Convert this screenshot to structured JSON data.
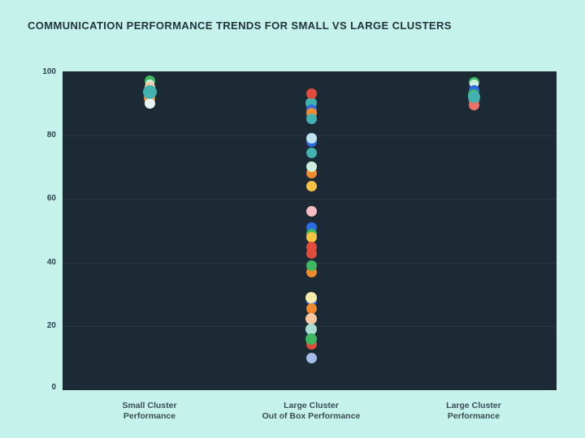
{
  "title": "COMMUNICATION PERFORMANCE TRENDS FOR SMALL VS LARGE CLUSTERS",
  "colors": {
    "page_background": "#c5f3ec",
    "plot_background": "#1c2a36",
    "gridline": "rgba(255,255,255,0.06)",
    "title_text": "#22333d",
    "tick_text": "#2e4150",
    "category_label_text": "#3b4c57"
  },
  "chart_data": {
    "type": "scatter",
    "subtype": "strip-plot",
    "title": "COMMUNICATION PERFORMANCE TRENDS FOR SMALL VS LARGE CLUSTERS",
    "xlabel": "",
    "ylabel": "",
    "ylim": [
      0,
      100
    ],
    "yticks": [
      0,
      20,
      40,
      60,
      80,
      100
    ],
    "grid": "horizontal",
    "legend": "none",
    "palette": {
      "green": "#3eb860",
      "mint": "#cfeedd",
      "peach": "#f8c8a2",
      "orange": "#f18a2d",
      "white": "#e6f2ef",
      "teal": "#41b2b0",
      "red": "#e14b3b",
      "blue": "#2d6be4",
      "lightblue": "#bfe3f0",
      "yellow": "#f5c242",
      "pink": "#f5bcc1",
      "paleyellow": "#f7ecae",
      "paleteal": "#a9ded3",
      "periwinkle": "#a2bde9",
      "salmon": "#ef7168"
    },
    "categories": [
      {
        "label_lines": [
          "Small Cluster",
          "Performance"
        ],
        "points": [
          {
            "value": 97,
            "color": "green",
            "size": 13
          },
          {
            "value": 96,
            "color": "mint",
            "size": 11
          },
          {
            "value": 95,
            "color": "peach",
            "size": 13
          },
          {
            "value": 91.5,
            "color": "orange",
            "size": 14
          },
          {
            "value": 90,
            "color": "white",
            "size": 13
          },
          {
            "value": 93.5,
            "color": "teal",
            "size": 17
          }
        ]
      },
      {
        "label_lines": [
          "Large Cluster",
          "Out of Box Performance"
        ],
        "points": [
          {
            "value": 90,
            "color": "teal",
            "size": 14
          },
          {
            "value": 93,
            "color": "red",
            "size": 13
          },
          {
            "value": 88,
            "color": "blue",
            "size": 13
          },
          {
            "value": 87,
            "color": "orange",
            "size": 13
          },
          {
            "value": 85,
            "color": "teal",
            "size": 13
          },
          {
            "value": 78,
            "color": "blue",
            "size": 13
          },
          {
            "value": 79,
            "color": "lightblue",
            "size": 13
          },
          {
            "value": 74.5,
            "color": "teal",
            "size": 13
          },
          {
            "value": 68,
            "color": "orange",
            "size": 13
          },
          {
            "value": 70,
            "color": "mint",
            "size": 13
          },
          {
            "value": 64,
            "color": "yellow",
            "size": 13
          },
          {
            "value": 56,
            "color": "pink",
            "size": 13
          },
          {
            "value": 51,
            "color": "blue",
            "size": 13
          },
          {
            "value": 49,
            "color": "green",
            "size": 13
          },
          {
            "value": 48,
            "color": "yellow",
            "size": 13
          },
          {
            "value": 45,
            "color": "red",
            "size": 13
          },
          {
            "value": 43,
            "color": "red",
            "size": 13
          },
          {
            "value": 37,
            "color": "orange",
            "size": 13
          },
          {
            "value": 39,
            "color": "green",
            "size": 13
          },
          {
            "value": 28,
            "color": "blue",
            "size": 13
          },
          {
            "value": 29,
            "color": "paleyellow",
            "size": 14
          },
          {
            "value": 25.5,
            "color": "orange",
            "size": 13
          },
          {
            "value": 22.5,
            "color": "peach",
            "size": 14
          },
          {
            "value": 19,
            "color": "paleteal",
            "size": 14
          },
          {
            "value": 14.5,
            "color": "red",
            "size": 13
          },
          {
            "value": 16,
            "color": "green",
            "size": 14
          },
          {
            "value": 10,
            "color": "periwinkle",
            "size": 13
          }
        ]
      },
      {
        "label_lines": [
          "Large Cluster",
          "Performance"
        ],
        "points": [
          {
            "value": 96.5,
            "color": "green",
            "size": 13
          },
          {
            "value": 96,
            "color": "mint",
            "size": 11
          },
          {
            "value": 94,
            "color": "blue",
            "size": 13
          },
          {
            "value": 92.5,
            "color": "green",
            "size": 14
          },
          {
            "value": 91,
            "color": "orange",
            "size": 13
          },
          {
            "value": 89.5,
            "color": "salmon",
            "size": 13
          },
          {
            "value": 92,
            "color": "teal",
            "size": 15
          }
        ]
      }
    ]
  }
}
